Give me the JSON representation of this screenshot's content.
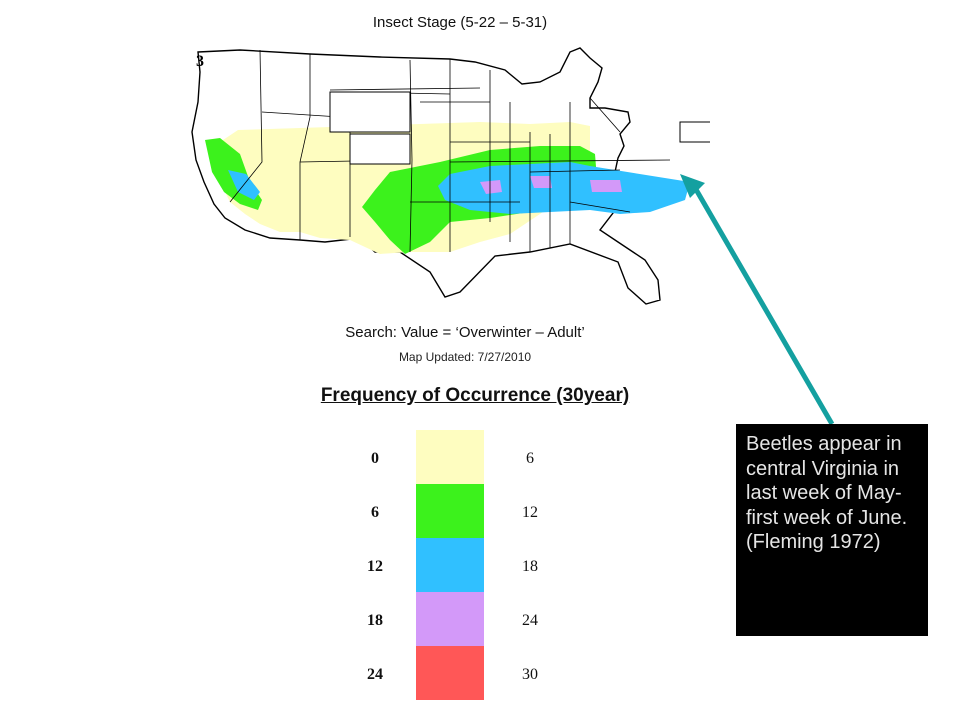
{
  "map": {
    "title": "Insect Stage (5-22 – 5-31)",
    "search": "Search: Value = ‘Overwinter – Adult’",
    "updated": "Map Updated: 7/27/2010",
    "state_label": "3"
  },
  "legend": {
    "title": "Frequency of Occurrence (30year)",
    "bins": [
      {
        "low": "0",
        "high": "6",
        "color": "#fefdc0"
      },
      {
        "low": "6",
        "high": "12",
        "color": "#3cf21c"
      },
      {
        "low": "12",
        "high": "18",
        "color": "#30c0ff"
      },
      {
        "low": "18",
        "high": "24",
        "color": "#d399f9"
      },
      {
        "low": "24",
        "high": "30",
        "color": "#ff5757"
      }
    ]
  },
  "annotation": {
    "text": "Beetles appear in central Virginia in last week of May-first week of June.(Fleming 1972)",
    "arrow_color": "#14a0a0",
    "box_color": "#000000"
  }
}
